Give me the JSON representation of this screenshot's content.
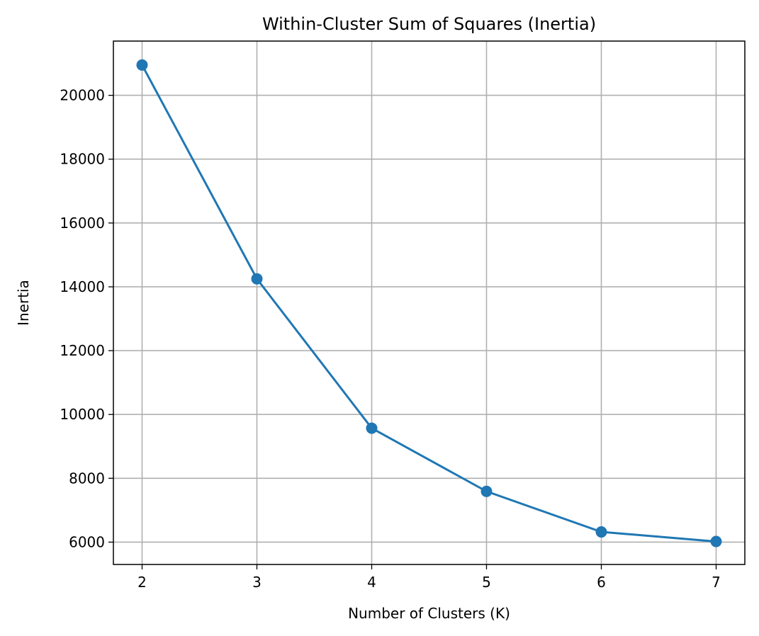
{
  "chart_data": {
    "type": "line",
    "title": "Within-Cluster Sum of Squares (Inertia)",
    "xlabel": "Number of Clusters (K)",
    "ylabel": "Inertia",
    "x": [
      2,
      3,
      4,
      5,
      6,
      7
    ],
    "series": [
      {
        "values": [
          20950,
          14250,
          9570,
          7590,
          6320,
          6020
        ],
        "color": "#1f77b4",
        "marker": "circle"
      }
    ],
    "xticks": [
      "2",
      "3",
      "4",
      "5",
      "6",
      "7"
    ],
    "yticks": [
      "6000",
      "8000",
      "10000",
      "12000",
      "14000",
      "16000",
      "18000",
      "20000"
    ],
    "xlim": [
      1.75,
      7.25
    ],
    "ylim": [
      5300,
      21700
    ],
    "grid": true,
    "colors": {
      "grid": "#b0b0b0",
      "axes": "#000000"
    }
  }
}
